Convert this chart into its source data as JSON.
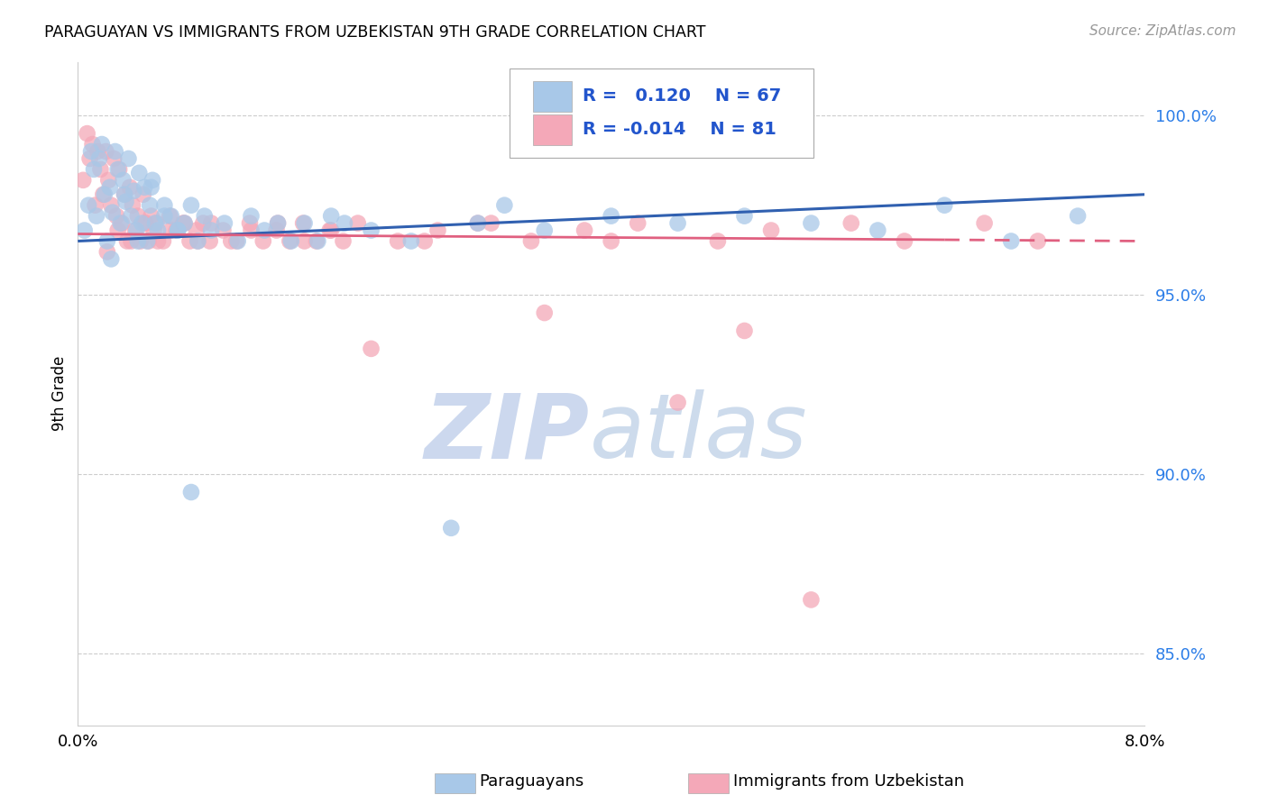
{
  "title": "PARAGUAYAN VS IMMIGRANTS FROM UZBEKISTAN 9TH GRADE CORRELATION CHART",
  "source": "Source: ZipAtlas.com",
  "ylabel": "9th Grade",
  "xlim": [
    0.0,
    8.0
  ],
  "ylim": [
    83.0,
    101.5
  ],
  "yticks": [
    85.0,
    90.0,
    95.0,
    100.0
  ],
  "ytick_labels": [
    "85.0%",
    "90.0%",
    "95.0%",
    "100.0%"
  ],
  "xticks": [
    0.0,
    1.0,
    2.0,
    3.0,
    4.0,
    5.0,
    6.0,
    7.0,
    8.0
  ],
  "blue_R": 0.12,
  "blue_N": 67,
  "pink_R": -0.014,
  "pink_N": 81,
  "blue_color": "#a8c8e8",
  "pink_color": "#f4a8b8",
  "blue_line_color": "#3060b0",
  "pink_line_color": "#e06080",
  "legend_label_blue": "Paraguayans",
  "legend_label_pink": "Immigrants from Uzbekistan",
  "blue_scatter_x": [
    0.05,
    0.08,
    0.1,
    0.12,
    0.14,
    0.16,
    0.18,
    0.2,
    0.22,
    0.24,
    0.26,
    0.28,
    0.3,
    0.32,
    0.34,
    0.36,
    0.38,
    0.4,
    0.42,
    0.44,
    0.46,
    0.48,
    0.5,
    0.52,
    0.54,
    0.56,
    0.58,
    0.6,
    0.65,
    0.7,
    0.75,
    0.8,
    0.85,
    0.9,
    0.95,
    1.0,
    1.1,
    1.2,
    1.3,
    1.4,
    1.5,
    1.6,
    1.7,
    1.8,
    1.9,
    2.0,
    2.2,
    2.5,
    2.8,
    3.0,
    3.2,
    3.5,
    4.0,
    4.5,
    5.0,
    5.5,
    6.0,
    6.5,
    7.0,
    7.5,
    0.25,
    0.35,
    0.45,
    0.55,
    0.65,
    0.75,
    0.85
  ],
  "blue_scatter_y": [
    96.8,
    97.5,
    99.0,
    98.5,
    97.2,
    98.8,
    99.2,
    97.8,
    96.5,
    98.0,
    97.3,
    99.0,
    98.5,
    97.0,
    98.2,
    97.6,
    98.8,
    97.2,
    97.9,
    96.8,
    98.4,
    97.0,
    98.0,
    96.5,
    97.5,
    98.2,
    97.0,
    96.8,
    97.5,
    97.2,
    96.8,
    97.0,
    97.5,
    96.5,
    97.2,
    96.8,
    97.0,
    96.5,
    97.2,
    96.8,
    97.0,
    96.5,
    97.0,
    96.5,
    97.2,
    97.0,
    96.8,
    96.5,
    88.5,
    97.0,
    97.5,
    96.8,
    97.2,
    97.0,
    97.2,
    97.0,
    96.8,
    97.5,
    96.5,
    97.2,
    96.0,
    97.8,
    96.5,
    98.0,
    97.2,
    96.8,
    89.5
  ],
  "pink_scatter_x": [
    0.04,
    0.07,
    0.09,
    0.11,
    0.13,
    0.15,
    0.17,
    0.19,
    0.21,
    0.23,
    0.25,
    0.27,
    0.29,
    0.31,
    0.33,
    0.35,
    0.37,
    0.39,
    0.41,
    0.43,
    0.45,
    0.47,
    0.49,
    0.51,
    0.53,
    0.55,
    0.57,
    0.59,
    0.64,
    0.69,
    0.74,
    0.79,
    0.84,
    0.89,
    0.94,
    0.99,
    1.09,
    1.19,
    1.29,
    1.39,
    1.49,
    1.59,
    1.69,
    1.79,
    1.89,
    1.99,
    2.1,
    2.4,
    2.7,
    3.1,
    3.4,
    3.8,
    4.2,
    4.8,
    5.2,
    5.8,
    6.2,
    6.8,
    7.2,
    0.3,
    0.4,
    0.5,
    0.6,
    0.7,
    0.8,
    0.9,
    1.0,
    1.15,
    1.3,
    1.5,
    1.7,
    1.9,
    2.2,
    2.6,
    3.0,
    3.5,
    4.0,
    4.5,
    5.0,
    5.5,
    0.22
  ],
  "pink_scatter_y": [
    98.2,
    99.5,
    98.8,
    99.2,
    97.5,
    99.0,
    98.5,
    97.8,
    99.0,
    98.2,
    97.5,
    98.8,
    97.2,
    98.5,
    97.0,
    97.8,
    96.5,
    98.0,
    97.5,
    96.8,
    97.2,
    96.5,
    97.8,
    97.0,
    96.5,
    97.2,
    96.8,
    97.0,
    96.5,
    97.2,
    96.8,
    97.0,
    96.5,
    96.8,
    97.0,
    96.5,
    96.8,
    96.5,
    97.0,
    96.5,
    96.8,
    96.5,
    97.0,
    96.5,
    96.8,
    96.5,
    97.0,
    96.5,
    96.8,
    97.0,
    96.5,
    96.8,
    97.0,
    96.5,
    96.8,
    97.0,
    96.5,
    97.0,
    96.5,
    96.8,
    96.5,
    97.0,
    96.5,
    96.8,
    97.0,
    96.5,
    97.0,
    96.5,
    96.8,
    97.0,
    96.5,
    96.8,
    93.5,
    96.5,
    97.0,
    94.5,
    96.5,
    92.0,
    94.0,
    86.5,
    96.2
  ],
  "background_color": "#ffffff",
  "grid_color": "#cccccc",
  "watermark_zip": "ZIP",
  "watermark_atlas": "atlas",
  "watermark_color": "#ccd8ee"
}
